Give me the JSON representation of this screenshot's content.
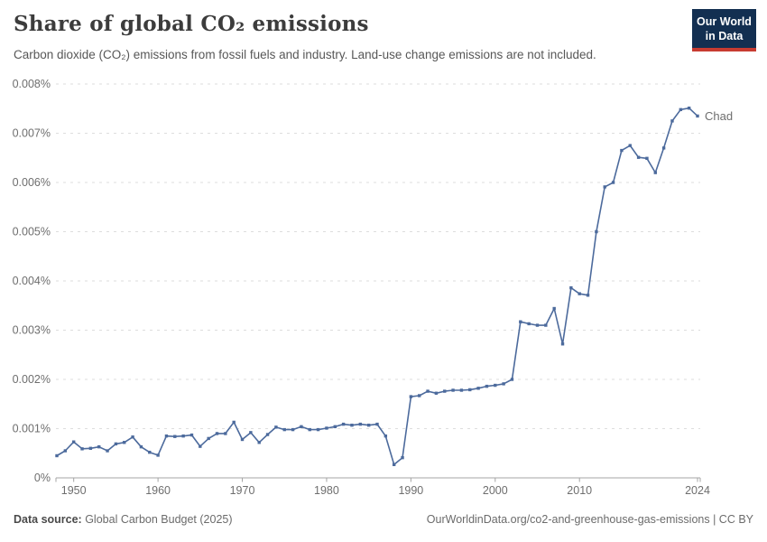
{
  "header": {
    "title": "Share of global CO₂ emissions",
    "subtitle": "Carbon dioxide (CO₂) emissions from fossil fuels and industry. Land-use change emissions are not included.",
    "logo": {
      "line1": "Our World",
      "line2": "in Data"
    }
  },
  "footer": {
    "source_label": "Data source:",
    "source_value": " Global Carbon Budget (2025)",
    "attribution": "OurWorldinData.org/co2-and-greenhouse-gas-emissions | CC BY"
  },
  "colors": {
    "line": "#4C6A9C",
    "grid": "#DDDDDD",
    "axis": "#A4A4A4",
    "tick_text": "#6E6E6E",
    "logo_bg": "#132F51",
    "logo_bar": "#C73B31"
  },
  "chart_data": {
    "type": "line",
    "title": "Share of global CO₂ emissions",
    "xlabel": "",
    "ylabel": "",
    "xlim": [
      1948,
      2024
    ],
    "ylim": [
      0,
      0.008
    ],
    "grid": "horizontal-dashed",
    "legend_position": "end-of-line-label",
    "x_tick_years": [
      1950,
      1960,
      1970,
      1980,
      1990,
      2000,
      2010,
      2024
    ],
    "x_tick_labels": [
      "1950",
      "1960",
      "1970",
      "1980",
      "1990",
      "2000",
      "2010",
      "2024"
    ],
    "y_tick_values": [
      0,
      0.001,
      0.002,
      0.003,
      0.004,
      0.005,
      0.006,
      0.007,
      0.008
    ],
    "y_tick_labels": [
      "0%",
      "0.001%",
      "0.002%",
      "0.003%",
      "0.004%",
      "0.005%",
      "0.006%",
      "0.007%",
      "0.008%"
    ],
    "series": [
      {
        "name": "Chad",
        "color": "#4C6A9C",
        "years": [
          1948,
          1949,
          1950,
          1951,
          1952,
          1953,
          1954,
          1955,
          1956,
          1957,
          1958,
          1959,
          1960,
          1961,
          1962,
          1963,
          1964,
          1965,
          1966,
          1967,
          1968,
          1969,
          1970,
          1971,
          1972,
          1973,
          1974,
          1975,
          1976,
          1977,
          1978,
          1979,
          1980,
          1981,
          1982,
          1983,
          1984,
          1985,
          1986,
          1987,
          1988,
          1989,
          1990,
          1991,
          1992,
          1993,
          1994,
          1995,
          1996,
          1997,
          1998,
          1999,
          2000,
          2001,
          2002,
          2003,
          2004,
          2005,
          2006,
          2007,
          2008,
          2009,
          2010,
          2011,
          2012,
          2013,
          2014,
          2015,
          2016,
          2017,
          2018,
          2019,
          2020,
          2021,
          2022,
          2023,
          2024
        ],
        "values_pct": [
          0.00045,
          0.00055,
          0.00073,
          0.00059,
          0.0006,
          0.00063,
          0.00055,
          0.00069,
          0.00072,
          0.00083,
          0.00063,
          0.00052,
          0.00046,
          0.00085,
          0.00084,
          0.00085,
          0.00087,
          0.00064,
          0.0008,
          0.0009,
          0.0009,
          0.00113,
          0.00078,
          0.00092,
          0.00072,
          0.00088,
          0.00103,
          0.00098,
          0.00098,
          0.00104,
          0.00098,
          0.00098,
          0.00101,
          0.00104,
          0.00109,
          0.00107,
          0.00109,
          0.00107,
          0.00109,
          0.00085,
          0.00027,
          0.00041,
          0.00165,
          0.00167,
          0.00176,
          0.00172,
          0.00176,
          0.00178,
          0.00178,
          0.00179,
          0.00182,
          0.00186,
          0.00188,
          0.00191,
          0.002,
          0.00317,
          0.00313,
          0.0031,
          0.0031,
          0.00344,
          0.00272,
          0.00386,
          0.00374,
          0.00371,
          0.005,
          0.00591,
          0.006,
          0.00665,
          0.00675,
          0.00651,
          0.00649,
          0.0062,
          0.0067,
          0.00725,
          0.00748,
          0.00751,
          0.00735
        ]
      }
    ]
  }
}
